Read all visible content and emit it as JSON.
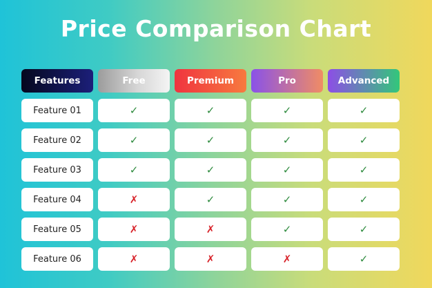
{
  "title": "Price Comparison Chart",
  "headers": [
    "Features",
    "Free",
    "Premium",
    "Pro",
    "Advanced"
  ],
  "rows": [
    {
      "feature": "Feature 01",
      "marks": [
        "✓",
        "✓",
        "✓",
        "✓"
      ]
    },
    {
      "feature": "Feature 02",
      "marks": [
        "✓",
        "✓",
        "✓",
        "✓"
      ]
    },
    {
      "feature": "Feature 03",
      "marks": [
        "✓",
        "✓",
        "✓",
        "✓"
      ]
    },
    {
      "feature": "Feature 04",
      "marks": [
        "✗",
        "✓",
        "✓",
        "✓"
      ]
    },
    {
      "feature": "Feature 05",
      "marks": [
        "✗",
        "✗",
        "✓",
        "✓"
      ]
    },
    {
      "feature": "Feature 06",
      "marks": [
        "✗",
        "✗",
        "✗",
        "✓"
      ]
    }
  ],
  "colors": {
    "check": "#2e8b3e",
    "cross": "#d8232a"
  }
}
